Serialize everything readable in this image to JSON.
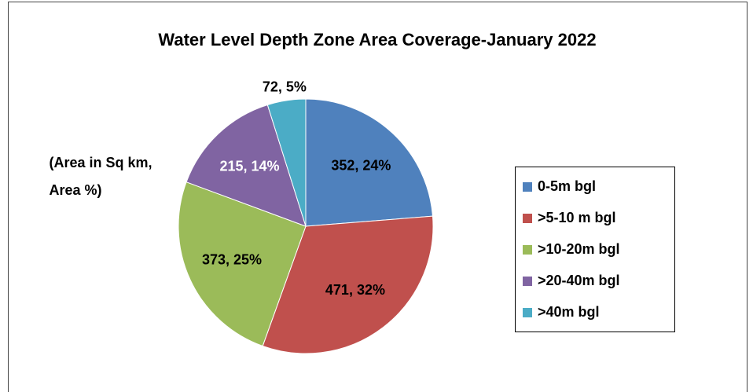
{
  "chart_data": {
    "type": "pie",
    "title": "Water Level Depth Zone Area Coverage-January 2022",
    "annotation": [
      "(Area in Sq km,",
      "Area %)"
    ],
    "categories": [
      "0-5m bgl",
      ">5-10 m bgl",
      ">10-20m bgl",
      ">20-40m bgl",
      ">40m bgl"
    ],
    "values": [
      352,
      471,
      373,
      215,
      72
    ],
    "value_labels": [
      "352, 24%",
      "471, 32%",
      "373, 25%",
      "215, 14%",
      "72, 5%"
    ],
    "colors": [
      "#4f81bd",
      "#c0504d",
      "#9bbb59",
      "#8064a2",
      "#4bacc6"
    ],
    "legend": "right"
  }
}
